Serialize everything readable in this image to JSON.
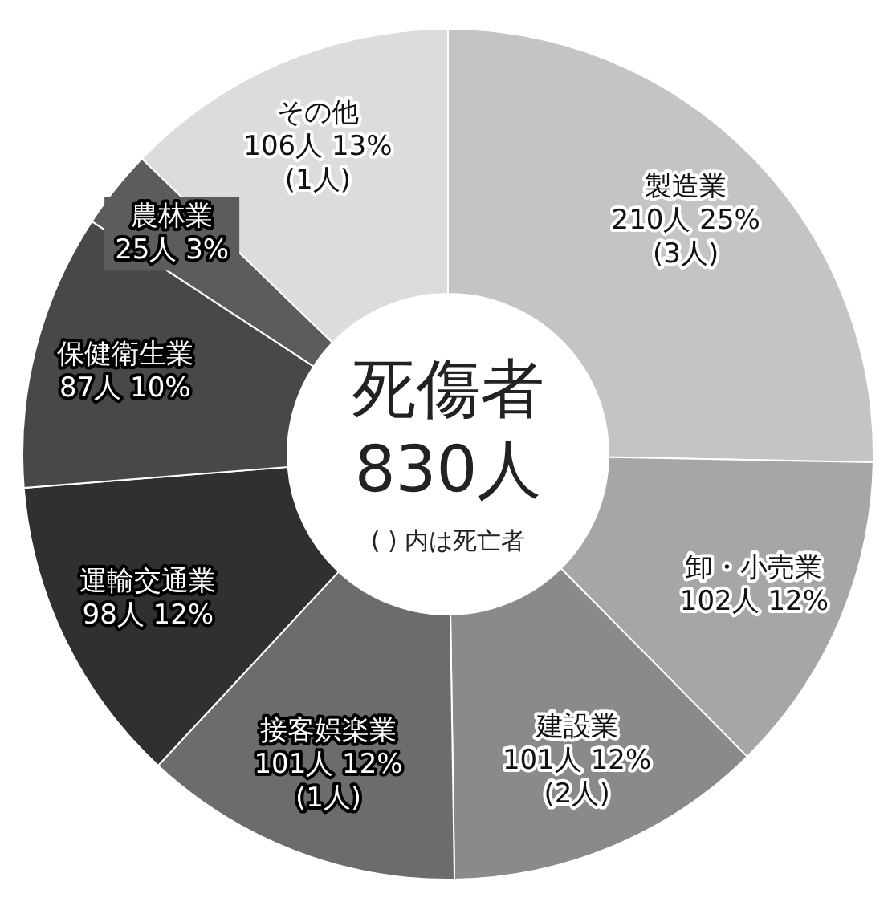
{
  "chart_data": {
    "type": "donut",
    "title": "死傷者",
    "subtitle": "830人",
    "annotations": [
      "( ) 内は死亡者"
    ],
    "categories": [
      "製造業",
      "卸・小売業",
      "建設業",
      "接客娯楽業",
      "運輸交通業",
      "保健衛生業",
      "農林業",
      "その他"
    ],
    "values": [
      210,
      102,
      101,
      101,
      98,
      87,
      25,
      106
    ],
    "value_labels": [
      "210人 25%\n(3人)",
      "102人 12%",
      "101人 12%\n(2人)",
      "101人 12%\n(1人)",
      "98人 12%",
      "87人 10%",
      "25人 3%",
      "106人 13%\n(1人)"
    ],
    "colors": [
      "#c4c4c4",
      "#a6a6a6",
      "#8a8a8a",
      "#6c6c6c",
      "#303030",
      "#484848",
      "#5c5c5c",
      "#dcdcdc"
    ]
  }
}
